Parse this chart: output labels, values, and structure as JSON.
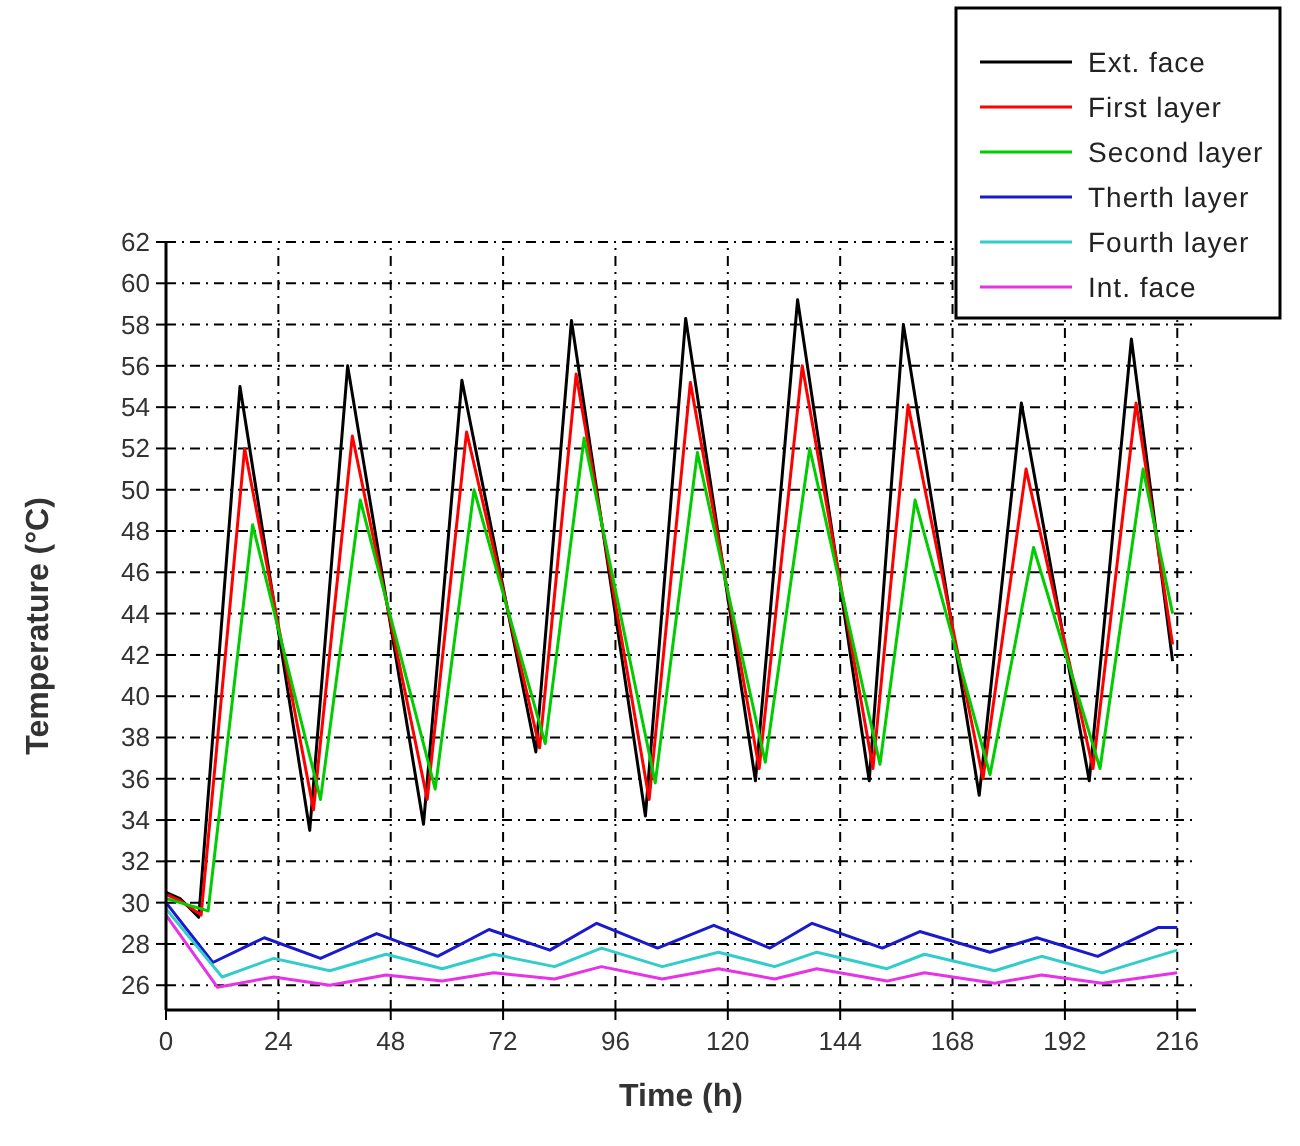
{
  "chart_data": {
    "type": "line",
    "xlabel": "Time (h)",
    "ylabel": "Temperature (°C)",
    "xlim": [
      0,
      220
    ],
    "ylim": [
      24.8,
      62
    ],
    "xticks": [
      0,
      24,
      48,
      72,
      96,
      120,
      144,
      168,
      192,
      216
    ],
    "yticks": [
      26,
      28,
      30,
      32,
      34,
      36,
      38,
      40,
      42,
      44,
      46,
      48,
      50,
      52,
      54,
      56,
      58,
      60,
      62
    ],
    "grid": true,
    "legend": "top right",
    "line_style": "solid",
    "marker": "none",
    "series": [
      {
        "name": "Ext. face",
        "color": "#000000",
        "x": [
          0,
          3,
          7,
          15.8,
          30.7,
          38.8,
          55,
          63.2,
          79,
          86.6,
          102.4,
          111,
          125.9,
          134.9,
          150.2,
          157.5,
          173.7,
          182.7,
          197.2,
          206.2,
          215
        ],
        "values": [
          30.5,
          30.2,
          29.3,
          55,
          33.5,
          56,
          33.8,
          55.3,
          37.3,
          58.2,
          34.2,
          58.3,
          35.9,
          59.2,
          35.9,
          58,
          35.2,
          54.2,
          35.9,
          57.3,
          41.7
        ]
      },
      {
        "name": "First layer",
        "color": "#ff0000",
        "x": [
          0,
          3,
          7.5,
          16.8,
          31.5,
          39.8,
          55.8,
          64.2,
          79.8,
          87.6,
          103.2,
          112,
          126.7,
          135.9,
          151,
          158.5,
          174.5,
          183.7,
          198,
          207.2,
          215
        ],
        "values": [
          30.4,
          30.1,
          29.4,
          52,
          34.5,
          52.6,
          35,
          52.8,
          37.5,
          55.6,
          35,
          55.2,
          36.5,
          56,
          36.5,
          54.1,
          36,
          51,
          36.5,
          54.2,
          42.5
        ]
      },
      {
        "name": "Second layer",
        "color": "#00cc00",
        "x": [
          0,
          3,
          9,
          18.5,
          33,
          41.5,
          57.5,
          65.8,
          81,
          89.3,
          104.5,
          113.5,
          128,
          137.5,
          152.5,
          160,
          176,
          185.3,
          199.5,
          208.7,
          215
        ],
        "values": [
          30.2,
          30,
          29.6,
          48.3,
          35,
          49.5,
          35.5,
          50,
          37.7,
          52.5,
          35.8,
          51.8,
          36.8,
          52,
          36.7,
          49.5,
          36.2,
          47.2,
          36.5,
          51,
          44
        ]
      },
      {
        "name": "Therth layer",
        "color": "#1a1acc",
        "x": [
          0,
          10,
          21,
          33,
          45,
          58,
          69,
          82,
          92,
          105,
          117,
          129,
          138,
          153,
          161,
          176,
          186,
          199,
          212,
          216
        ],
        "values": [
          30,
          27.1,
          28.3,
          27.3,
          28.5,
          27.4,
          28.7,
          27.7,
          29,
          27.8,
          28.9,
          27.8,
          29,
          27.8,
          28.6,
          27.6,
          28.3,
          27.4,
          28.8,
          28.8
        ]
      },
      {
        "name": "Fourth layer",
        "color": "#33cccc",
        "x": [
          0,
          12,
          23,
          35,
          47,
          59,
          70,
          83,
          93,
          106,
          118,
          130,
          139,
          154,
          162,
          177,
          187,
          200,
          216
        ],
        "values": [
          29.7,
          26.4,
          27.3,
          26.7,
          27.5,
          26.8,
          27.5,
          26.9,
          27.8,
          26.9,
          27.6,
          26.9,
          27.6,
          26.8,
          27.5,
          26.7,
          27.4,
          26.6,
          27.7
        ]
      },
      {
        "name": "Int. face",
        "color": "#e633e6",
        "x": [
          0,
          11,
          23,
          35,
          47,
          59,
          70,
          83,
          93,
          106,
          118,
          130,
          139,
          154,
          162,
          177,
          187,
          200,
          216
        ],
        "values": [
          29.4,
          25.9,
          26.4,
          26,
          26.5,
          26.2,
          26.6,
          26.3,
          26.9,
          26.3,
          26.8,
          26.3,
          26.8,
          26.2,
          26.6,
          26.1,
          26.5,
          26.1,
          26.6
        ]
      }
    ]
  }
}
